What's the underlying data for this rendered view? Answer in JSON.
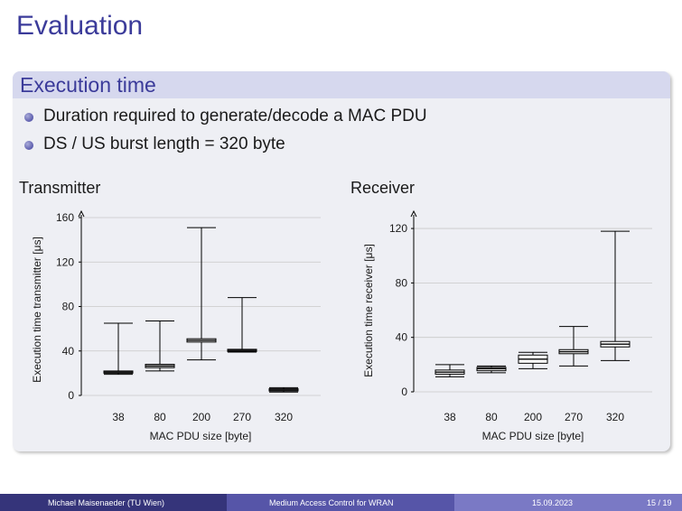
{
  "slide": {
    "title": "Evaluation"
  },
  "block": {
    "title": "Execution time",
    "bullets": [
      "Duration required to generate/decode a MAC PDU",
      "DS / US burst length = 320 byte"
    ]
  },
  "colors": {
    "accent": "#3b3b9a",
    "block_bg": "#eeeff4",
    "block_head": "#d6d8ee"
  },
  "chart_data": [
    {
      "type": "box",
      "title": "Transmitter",
      "xlabel": "MAC PDU size [byte]",
      "ylabel": "Execution time transmitter [μs]",
      "categories": [
        "38",
        "80",
        "200",
        "270",
        "320"
      ],
      "yticks": [
        "0",
        "40",
        "80",
        "120",
        "160"
      ],
      "ylim": [
        0,
        160
      ],
      "grid": true,
      "boxes": [
        {
          "min": 19,
          "q1": 20,
          "median": 21,
          "q3": 22,
          "max": 65
        },
        {
          "min": 22,
          "q1": 25,
          "median": 26.5,
          "q3": 28,
          "max": 67
        },
        {
          "min": 32,
          "q1": 48,
          "median": 49.5,
          "q3": 51,
          "max": 151
        },
        {
          "min": 39,
          "q1": 39.5,
          "median": 40.5,
          "q3": 41.5,
          "max": 88
        },
        {
          "min": 3,
          "q1": 4,
          "median": 5,
          "q3": 6,
          "max": 7
        }
      ]
    },
    {
      "type": "box",
      "title": "Receiver",
      "xlabel": "MAC PDU size [byte]",
      "ylabel": "Execution time receiver [μs]",
      "categories": [
        "38",
        "80",
        "200",
        "270",
        "320"
      ],
      "yticks": [
        "0",
        "40",
        "80",
        "120"
      ],
      "ylim": [
        0,
        130
      ],
      "grid": true,
      "boxes": [
        {
          "min": 11,
          "q1": 13,
          "median": 14.5,
          "q3": 16,
          "max": 20
        },
        {
          "min": 14,
          "q1": 15.5,
          "median": 17,
          "q3": 18,
          "max": 19
        },
        {
          "min": 17,
          "q1": 21,
          "median": 24,
          "q3": 27,
          "max": 29
        },
        {
          "min": 19,
          "q1": 28,
          "median": 29.5,
          "q3": 31,
          "max": 48
        },
        {
          "min": 23,
          "q1": 33,
          "median": 35,
          "q3": 37,
          "max": 118
        }
      ]
    }
  ],
  "footer": {
    "author": "Michael Maisenaeder (TU Wien)",
    "talk": "Medium Access Control for WRAN",
    "date": "15.09.2023",
    "page": "15 / 19"
  }
}
